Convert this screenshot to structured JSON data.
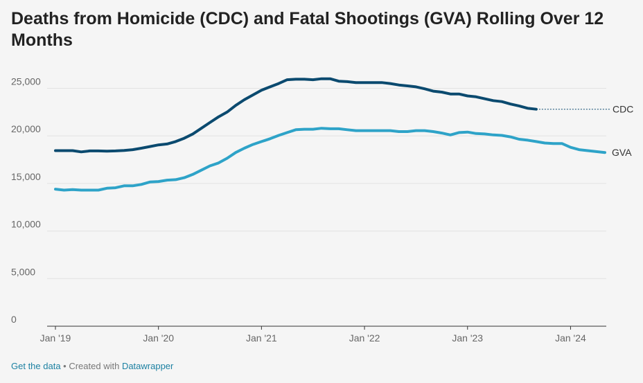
{
  "title": "Deaths from Homicide (CDC) and Fatal Shootings (GVA) Rolling Over 12 Months",
  "footer": {
    "get_data": "Get the data",
    "separator": " • Created with ",
    "tool": "Datawrapper"
  },
  "chart_data": {
    "type": "line",
    "title": "Deaths from Homicide (CDC) and Fatal Shootings (GVA) Rolling Over 12 Months",
    "xlabel": "",
    "ylabel": "",
    "x_range": [
      "2019-01",
      "2024-05"
    ],
    "ylim": [
      0,
      27000
    ],
    "y_ticks": [
      0,
      5000,
      10000,
      15000,
      20000,
      25000
    ],
    "y_tick_labels": [
      "0",
      "5,000",
      "10,000",
      "15,000",
      "20,000",
      "25,000"
    ],
    "x_tick_labels": [
      "Jan '19",
      "Jan '20",
      "Jan '21",
      "Jan '22",
      "Jan '23",
      "Jan '24"
    ],
    "x_ticks": [
      "2019-01",
      "2020-01",
      "2021-01",
      "2022-01",
      "2023-01",
      "2024-01"
    ],
    "grid": true,
    "legend": "direct labels at line ends",
    "colors": {
      "CDC": "#0b4a6f",
      "GVA": "#2ea3c8",
      "grid": "#e2e2e2",
      "axis": "#333333"
    },
    "series": [
      {
        "name": "CDC",
        "x": [
          "2019-01",
          "2019-02",
          "2019-03",
          "2019-04",
          "2019-05",
          "2019-06",
          "2019-07",
          "2019-08",
          "2019-09",
          "2019-10",
          "2019-11",
          "2019-12",
          "2020-01",
          "2020-02",
          "2020-03",
          "2020-04",
          "2020-05",
          "2020-06",
          "2020-07",
          "2020-08",
          "2020-09",
          "2020-10",
          "2020-11",
          "2020-12",
          "2021-01",
          "2021-02",
          "2021-03",
          "2021-04",
          "2021-05",
          "2021-06",
          "2021-07",
          "2021-08",
          "2021-09",
          "2021-10",
          "2021-11",
          "2021-12",
          "2022-01",
          "2022-02",
          "2022-03",
          "2022-04",
          "2022-05",
          "2022-06",
          "2022-07",
          "2022-08",
          "2022-09",
          "2022-10",
          "2022-11",
          "2022-12",
          "2023-01",
          "2023-02",
          "2023-03",
          "2023-04",
          "2023-05",
          "2023-06",
          "2023-07",
          "2023-08",
          "2023-09"
        ],
        "values": [
          18450,
          18450,
          18450,
          18320,
          18420,
          18420,
          18400,
          18420,
          18460,
          18550,
          18700,
          18880,
          19050,
          19150,
          19400,
          19750,
          20200,
          20800,
          21400,
          22000,
          22500,
          23200,
          23800,
          24300,
          24800,
          25150,
          25500,
          25900,
          25950,
          25950,
          25900,
          26000,
          26000,
          25750,
          25700,
          25600,
          25600,
          25600,
          25600,
          25500,
          25350,
          25250,
          25150,
          24950,
          24700,
          24600,
          24400,
          24400,
          24200,
          24100,
          23900,
          23700,
          23600,
          23350,
          23150,
          22900,
          22800
        ]
      },
      {
        "name": "GVA",
        "x": [
          "2019-01",
          "2019-02",
          "2019-03",
          "2019-04",
          "2019-05",
          "2019-06",
          "2019-07",
          "2019-08",
          "2019-09",
          "2019-10",
          "2019-11",
          "2019-12",
          "2020-01",
          "2020-02",
          "2020-03",
          "2020-04",
          "2020-05",
          "2020-06",
          "2020-07",
          "2020-08",
          "2020-09",
          "2020-10",
          "2020-11",
          "2020-12",
          "2021-01",
          "2021-02",
          "2021-03",
          "2021-04",
          "2021-05",
          "2021-06",
          "2021-07",
          "2021-08",
          "2021-09",
          "2021-10",
          "2021-11",
          "2021-12",
          "2022-01",
          "2022-02",
          "2022-03",
          "2022-04",
          "2022-05",
          "2022-06",
          "2022-07",
          "2022-08",
          "2022-09",
          "2022-10",
          "2022-11",
          "2022-12",
          "2023-01",
          "2023-02",
          "2023-03",
          "2023-04",
          "2023-05",
          "2023-06",
          "2023-07",
          "2023-08",
          "2023-09",
          "2023-10",
          "2023-11",
          "2023-12",
          "2024-01",
          "2024-02",
          "2024-03",
          "2024-04",
          "2024-05"
        ],
        "values": [
          14400,
          14300,
          14350,
          14300,
          14300,
          14300,
          14500,
          14550,
          14750,
          14750,
          14900,
          15150,
          15200,
          15350,
          15400,
          15600,
          15950,
          16400,
          16850,
          17150,
          17650,
          18250,
          18700,
          19100,
          19400,
          19700,
          20050,
          20350,
          20650,
          20700,
          20700,
          20800,
          20750,
          20750,
          20650,
          20550,
          20550,
          20550,
          20550,
          20550,
          20450,
          20450,
          20550,
          20550,
          20450,
          20300,
          20100,
          20350,
          20400,
          20250,
          20200,
          20100,
          20050,
          19900,
          19650,
          19550,
          19400,
          19250,
          19200,
          19200,
          18800,
          18550,
          18450,
          18350,
          18250
        ]
      }
    ]
  }
}
